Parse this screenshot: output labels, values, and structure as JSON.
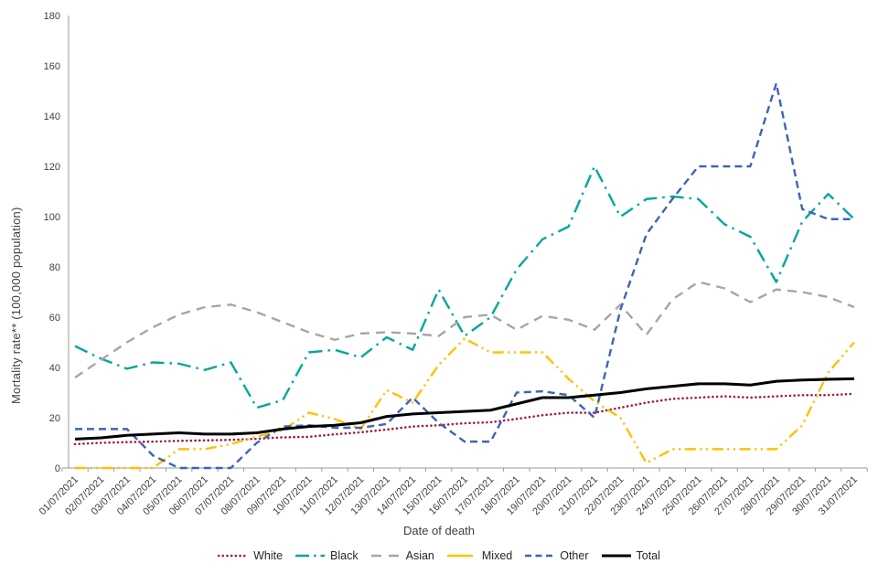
{
  "chart_data": {
    "type": "line",
    "title": "",
    "xlabel": "Date of death",
    "ylabel": "Mortality rate** (100,000 population)",
    "ylim": [
      0,
      180
    ],
    "ytick_step": 20,
    "grid": false,
    "legend_position": "bottom",
    "x": [
      "01/07/2021",
      "02/07/2021",
      "03/07/2021",
      "04/07/2021",
      "05/07/2021",
      "06/07/2021",
      "07/07/2021",
      "08/07/2021",
      "09/07/2021",
      "10/07/2021",
      "11/07/2021",
      "12/07/2021",
      "13/07/2021",
      "14/07/2021",
      "15/07/2021",
      "16/07/2021",
      "17/07/2021",
      "18/07/2021",
      "19/07/2021",
      "20/07/2021",
      "21/07/2021",
      "22/07/2021",
      "23/07/2021",
      "24/07/2021",
      "25/07/2021",
      "26/07/2021",
      "27/07/2021",
      "28/07/2021",
      "29/07/2021",
      "30/07/2021",
      "31/07/2021"
    ],
    "series": [
      {
        "name": "White",
        "color": "#9E1B42",
        "line_style": "dotted",
        "values": [
          9.5,
          10,
          10.3,
          10.5,
          10.8,
          11,
          11.2,
          11.6,
          12.2,
          12.4,
          13.4,
          14.2,
          15.3,
          16.5,
          17,
          17.8,
          18.2,
          19.5,
          21,
          22,
          22,
          24,
          26,
          27.5,
          28,
          28.5,
          28,
          28.5,
          29,
          29,
          29.5
        ]
      },
      {
        "name": "Black",
        "color": "#00A79B",
        "line_style": "long-dash-dot",
        "values": [
          48.5,
          43.5,
          39.5,
          42,
          41.5,
          39,
          42,
          24,
          27,
          46,
          47,
          44,
          52,
          47,
          71,
          52.5,
          60,
          79,
          91,
          96,
          120,
          100,
          107,
          108,
          107,
          97,
          92,
          74,
          98,
          109,
          99
        ]
      },
      {
        "name": "Asian",
        "color": "#A6A6A6",
        "line_style": "dashed-long",
        "values": [
          36,
          43,
          50,
          56,
          61,
          64,
          65,
          62,
          58,
          54,
          51,
          53.5,
          54,
          53.5,
          52.5,
          60,
          61,
          55,
          60.5,
          59,
          55,
          65,
          53,
          67,
          74,
          71.5,
          66,
          71,
          70,
          68,
          64
        ]
      },
      {
        "name": "Mixed",
        "color": "#FFC000",
        "line_style": "long-dash-dot-dot",
        "values": [
          0,
          0,
          0,
          0,
          7.5,
          7.5,
          9.5,
          12.5,
          15,
          22,
          19.5,
          15.5,
          31,
          26,
          41,
          51.5,
          46,
          46,
          46,
          35.5,
          26.5,
          20,
          2,
          7.5,
          7.5,
          7.5,
          7.5,
          7.5,
          17,
          38,
          50
        ]
      },
      {
        "name": "Other",
        "color": "#3F63B5",
        "line_style": "dashed",
        "values": [
          15.5,
          15.5,
          15.5,
          5,
          0,
          0,
          0,
          10,
          16.5,
          17,
          16,
          16,
          17.5,
          28,
          18,
          10.5,
          10.5,
          30,
          30.5,
          29,
          20,
          63,
          93,
          107,
          120,
          120,
          120,
          153,
          103,
          99,
          99
        ]
      },
      {
        "name": "Total",
        "color": "#000000",
        "line_style": "solid",
        "values": [
          11.5,
          12,
          13,
          13.5,
          14,
          13.5,
          13.5,
          14,
          15.5,
          16.5,
          17,
          18,
          20.5,
          21.5,
          22,
          22.5,
          23,
          25.5,
          28,
          28,
          29,
          30,
          31.5,
          32.5,
          33.5,
          33.5,
          33,
          34.5,
          35,
          35.3,
          35.5
        ]
      }
    ]
  }
}
